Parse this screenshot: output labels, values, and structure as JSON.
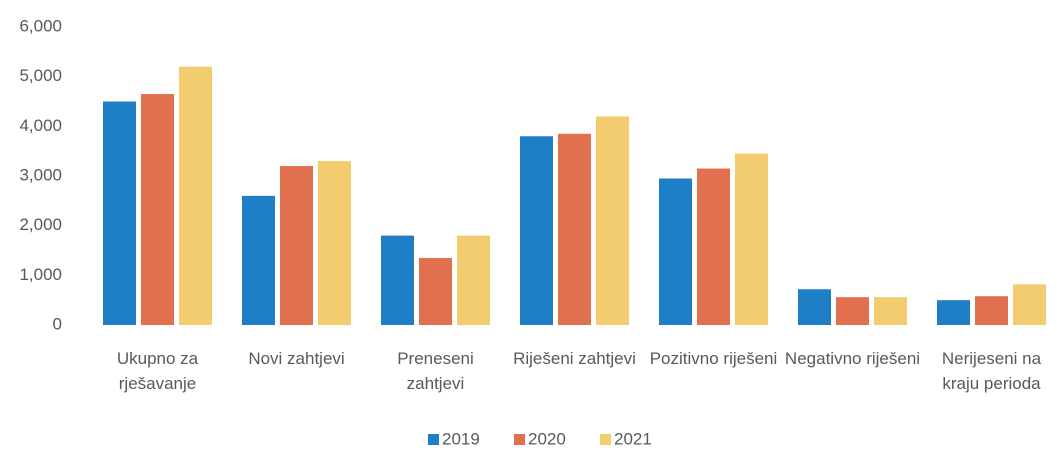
{
  "chart_data": {
    "type": "bar",
    "categories": [
      "Ukupno za rješavanje",
      "Novi zahtjevi",
      "Preneseni zahtjevi",
      "Riješeni zahtjevi",
      "Pozitivno riješeni",
      "Negativno riješeni",
      "Nerijeseni na kraju perioda"
    ],
    "series": [
      {
        "name": "2019",
        "color": "#1f7fc6",
        "values": [
          4500,
          2600,
          1800,
          3800,
          2950,
          720,
          500
        ]
      },
      {
        "name": "2020",
        "color": "#e0704e",
        "values": [
          4650,
          3200,
          1350,
          3850,
          3150,
          560,
          580
        ]
      },
      {
        "name": "2021",
        "color": "#f2cc6e",
        "values": [
          5200,
          3300,
          1800,
          4200,
          3450,
          560,
          820
        ]
      }
    ],
    "ylim": [
      0,
      6000
    ],
    "yticks": [
      0,
      {
        "value": 1000,
        "label": "1,000"
      },
      {
        "value": 2000,
        "label": "2,000"
      },
      {
        "value": 3000,
        "label": "3,000"
      },
      {
        "value": 4000,
        "label": "4,000"
      },
      {
        "value": 5000,
        "label": "5,000"
      },
      {
        "value": 6000,
        "label": "6,000"
      }
    ],
    "grid": false,
    "legend": "bottom"
  }
}
